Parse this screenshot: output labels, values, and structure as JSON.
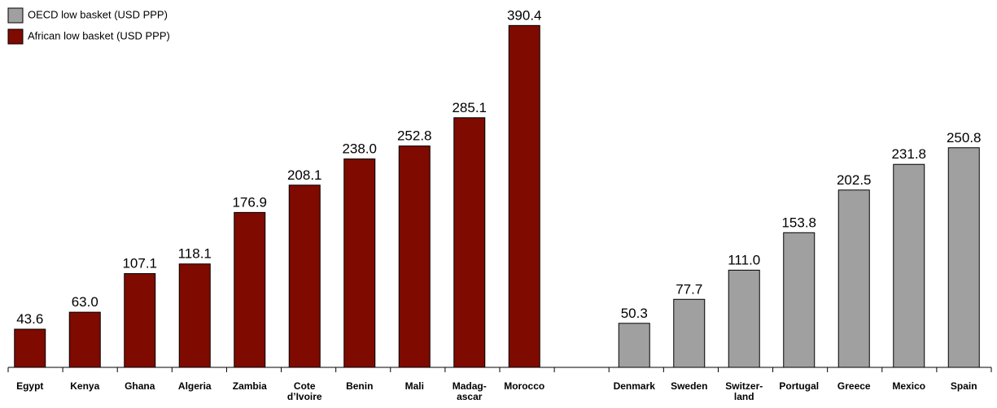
{
  "chart_data": {
    "type": "bar",
    "categories": [
      "Egypt",
      "Kenya",
      "Ghana",
      "Algeria",
      "Zambia",
      "Cote\nd’Ivoire",
      "Benin",
      "Mali",
      "Madag-\nascar",
      "Morocco",
      null,
      "Denmark",
      "Sweden",
      "Switzer-\nland",
      "Portugal",
      "Greece",
      "Mexico",
      "Spain"
    ],
    "series": [
      {
        "name": "OECD low basket (USD PPP)",
        "color": "#a0a0a0",
        "values": [
          null,
          null,
          null,
          null,
          null,
          null,
          null,
          null,
          null,
          null,
          null,
          50.3,
          77.7,
          111,
          153.8,
          202.5,
          231.8,
          250.8
        ],
        "value_labels": [
          null,
          null,
          null,
          null,
          null,
          null,
          null,
          null,
          null,
          null,
          null,
          "50.3",
          "77.7",
          "111.0",
          "153.8",
          "202.5",
          "231.8",
          "250.8"
        ]
      },
      {
        "name": "African low basket (USD PPP)",
        "color": "#7f0a00",
        "values": [
          43.6,
          63,
          107.1,
          118.1,
          176.9,
          208.1,
          238,
          252.8,
          285.1,
          390.4,
          null,
          null,
          null,
          null,
          null,
          null,
          null,
          null
        ],
        "value_labels": [
          "43.6",
          "63.0",
          "107.1",
          "118.1",
          "176.9",
          "208.1",
          "238.0",
          "252.8",
          "285.1",
          "390.4",
          null,
          null,
          null,
          null,
          null,
          null,
          null,
          null
        ]
      }
    ],
    "ylim": [
      0,
      400
    ]
  }
}
